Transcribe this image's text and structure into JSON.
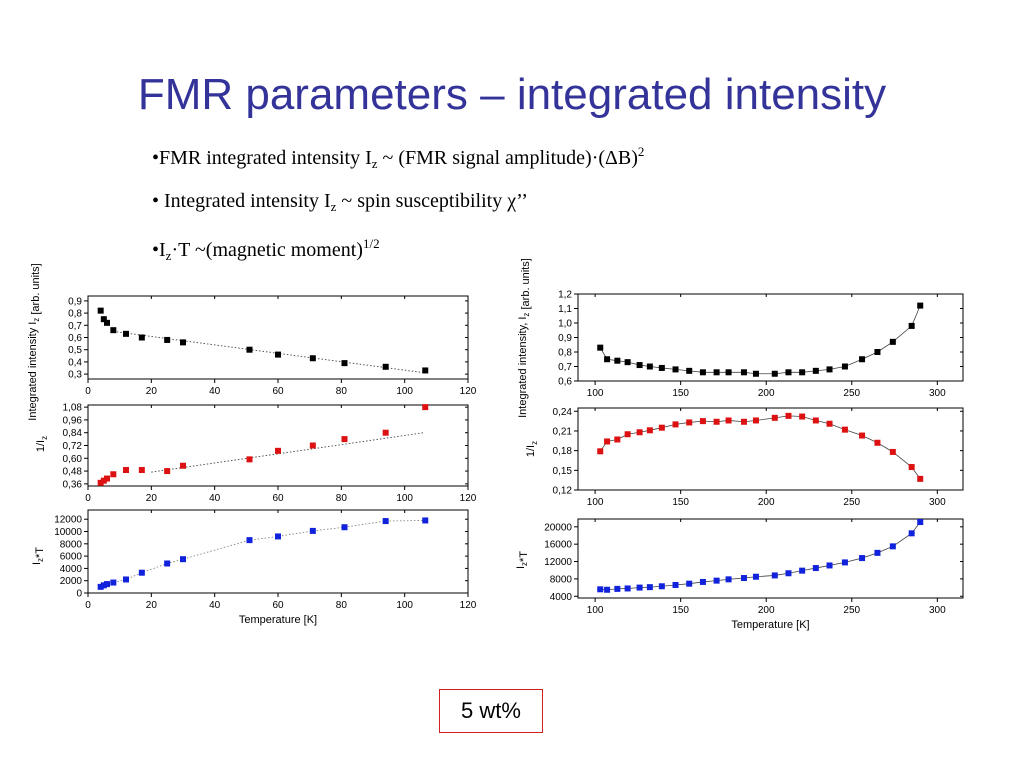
{
  "slide": {
    "title": "FMR parameters – integrated intensity",
    "bullet1": {
      "a": "•FMR integrated intensity  I",
      "sub": "z",
      "b": " ~ (FMR signal amplitude)·(ΔB)",
      "sup": "2"
    },
    "bullet2": {
      "a": "• Integrated intensity  I",
      "sub": "z",
      "b": " ~ spin susceptibility χ’’"
    },
    "bullet3": {
      "a": "•I",
      "sub": "z",
      "b": "·T ~(magnetic moment)",
      "sup": "1/2"
    },
    "sample_label": "5 wt%"
  },
  "colors": {
    "title": "#333399",
    "black": "#000000",
    "red": "#dd1111",
    "blue": "#1122dd",
    "box": "#d02020"
  },
  "chart_data": [
    {
      "type": "scatter",
      "panel": "left-top",
      "ylabel": "Integrated intensity I_z [arb. units]",
      "xlim": [
        0,
        120
      ],
      "ylim": [
        0.26,
        0.94
      ],
      "xticks": [
        "0",
        "20",
        "40",
        "60",
        "80",
        "100",
        "120"
      ],
      "xtickvals": [
        0,
        20,
        40,
        60,
        80,
        100,
        120
      ],
      "yticks": [
        "0,3",
        "0,4",
        "0,5",
        "0,6",
        "0,7",
        "0,8",
        "0,9"
      ],
      "ytickvals": [
        0.3,
        0.4,
        0.5,
        0.6,
        0.7,
        0.8,
        0.9
      ],
      "color": "#000000",
      "x": [
        4,
        5,
        6,
        8,
        12,
        17,
        25,
        30,
        51,
        60,
        71,
        81,
        94,
        106.5
      ],
      "y": [
        0.82,
        0.75,
        0.72,
        0.66,
        0.63,
        0.6,
        0.58,
        0.56,
        0.5,
        0.46,
        0.43,
        0.39,
        0.36,
        0.33
      ],
      "fit": [
        [
          8,
          0.65
        ],
        [
          106.5,
          0.31
        ]
      ]
    },
    {
      "type": "scatter",
      "panel": "left-mid",
      "ylabel": "1/I_z",
      "xlim": [
        0,
        120
      ],
      "ylim": [
        0.34,
        1.1
      ],
      "xticks": [
        "0",
        "20",
        "40",
        "60",
        "80",
        "100",
        "120"
      ],
      "xtickvals": [
        0,
        20,
        40,
        60,
        80,
        100,
        120
      ],
      "yticks": [
        "0,36",
        "0,48",
        "0,60",
        "0,72",
        "0,84",
        "0,96",
        "1,08"
      ],
      "ytickvals": [
        0.36,
        0.48,
        0.6,
        0.72,
        0.84,
        0.96,
        1.08
      ],
      "color": "#dd1111",
      "x": [
        4,
        5,
        6,
        8,
        12,
        17,
        25,
        30,
        51,
        60,
        71,
        81,
        94,
        106.5
      ],
      "y": [
        0.37,
        0.39,
        0.41,
        0.45,
        0.49,
        0.49,
        0.48,
        0.53,
        0.59,
        0.67,
        0.72,
        0.78,
        0.84,
        1.08
      ],
      "fit": [
        [
          20,
          0.47
        ],
        [
          106,
          0.84
        ]
      ]
    },
    {
      "type": "line",
      "panel": "left-bottom",
      "ylabel": "I_z*T",
      "xlabel": "Temperature [K]",
      "xlim": [
        0,
        120
      ],
      "ylim": [
        0,
        13500
      ],
      "xticks": [
        "0",
        "20",
        "40",
        "60",
        "80",
        "100",
        "120"
      ],
      "xtickvals": [
        0,
        20,
        40,
        60,
        80,
        100,
        120
      ],
      "yticks": [
        "0",
        "2000",
        "4000",
        "6000",
        "8000",
        "10000",
        "12000"
      ],
      "ytickvals": [
        0,
        2000,
        4000,
        6000,
        8000,
        10000,
        12000
      ],
      "color": "#1122dd",
      "x": [
        4,
        5,
        6,
        8,
        12,
        17,
        25,
        30,
        51,
        60,
        71,
        81,
        94,
        106.5
      ],
      "y": [
        1000,
        1250,
        1450,
        1700,
        2200,
        3300,
        4800,
        5500,
        8600,
        9200,
        10100,
        10700,
        11700,
        11800
      ],
      "connect": "dotted"
    },
    {
      "type": "line",
      "panel": "right-top",
      "ylabel": "Integrated intensity, I_z [arb. units]",
      "xlim": [
        90,
        315
      ],
      "ylim": [
        0.6,
        1.2
      ],
      "xticks": [
        "100",
        "150",
        "200",
        "250",
        "300"
      ],
      "xtickvals": [
        100,
        150,
        200,
        250,
        300
      ],
      "yticks": [
        "0,6",
        "0,7",
        "0,8",
        "0,9",
        "1,0",
        "1,1",
        "1,2"
      ],
      "ytickvals": [
        0.6,
        0.7,
        0.8,
        0.9,
        1.0,
        1.1,
        1.2
      ],
      "color": "#000000",
      "x": [
        103,
        107,
        113,
        119,
        126,
        132,
        139,
        147,
        155,
        163,
        171,
        178,
        187,
        194,
        205,
        213,
        221,
        229,
        237,
        246,
        256,
        265,
        274,
        285,
        290
      ],
      "y": [
        0.83,
        0.75,
        0.74,
        0.73,
        0.71,
        0.7,
        0.69,
        0.68,
        0.67,
        0.66,
        0.66,
        0.66,
        0.66,
        0.65,
        0.65,
        0.66,
        0.66,
        0.67,
        0.68,
        0.7,
        0.75,
        0.8,
        0.87,
        0.98,
        1.12
      ],
      "connect": "solid"
    },
    {
      "type": "line",
      "panel": "right-mid",
      "ylabel": "1/I_z",
      "xlim": [
        90,
        315
      ],
      "ylim": [
        0.12,
        0.245
      ],
      "xticks": [
        "100",
        "150",
        "200",
        "250",
        "300"
      ],
      "xtickvals": [
        100,
        150,
        200,
        250,
        300
      ],
      "yticks": [
        "0,12",
        "0,15",
        "0,18",
        "0,21",
        "0,24"
      ],
      "ytickvals": [
        0.12,
        0.15,
        0.18,
        0.21,
        0.24
      ],
      "color": "#dd1111",
      "x": [
        103,
        107,
        113,
        119,
        126,
        132,
        139,
        147,
        155,
        163,
        171,
        178,
        187,
        194,
        205,
        213,
        221,
        229,
        237,
        246,
        256,
        265,
        274,
        285,
        290
      ],
      "y": [
        0.179,
        0.194,
        0.197,
        0.205,
        0.208,
        0.211,
        0.215,
        0.22,
        0.223,
        0.225,
        0.224,
        0.226,
        0.224,
        0.226,
        0.23,
        0.233,
        0.232,
        0.226,
        0.221,
        0.212,
        0.203,
        0.192,
        0.178,
        0.155,
        0.137
      ],
      "connect": "solid"
    },
    {
      "type": "line",
      "panel": "right-bottom",
      "ylabel": "I_z*T",
      "xlabel": "Temperature [K]",
      "xlim": [
        90,
        315
      ],
      "ylim": [
        3600,
        21800
      ],
      "xticks": [
        "100",
        "150",
        "200",
        "250",
        "300"
      ],
      "xtickvals": [
        100,
        150,
        200,
        250,
        300
      ],
      "yticks": [
        "4000",
        "8000",
        "12000",
        "16000",
        "20000"
      ],
      "ytickvals": [
        4000,
        8000,
        12000,
        16000,
        20000
      ],
      "color": "#1122dd",
      "x": [
        103,
        107,
        113,
        119,
        126,
        132,
        139,
        147,
        155,
        163,
        171,
        178,
        187,
        194,
        205,
        213,
        221,
        229,
        237,
        246,
        256,
        265,
        274,
        285,
        290
      ],
      "y": [
        5600,
        5500,
        5700,
        5800,
        6000,
        6100,
        6300,
        6600,
        6900,
        7300,
        7600,
        7900,
        8200,
        8500,
        8800,
        9300,
        9900,
        10500,
        11100,
        11800,
        12800,
        14000,
        15500,
        18500,
        21100
      ],
      "connect": "solid"
    }
  ]
}
